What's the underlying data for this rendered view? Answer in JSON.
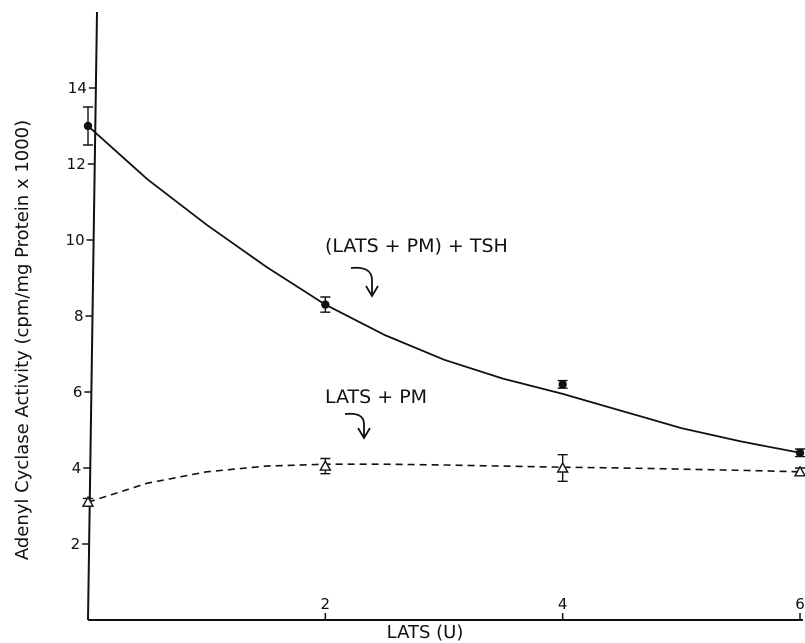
{
  "chart_data": {
    "type": "line",
    "xlabel": "LATS (U)",
    "ylabel": "Adenyl Cyclase Activity (cpm/mg Protein x 1000)",
    "xlim": [
      0,
      6
    ],
    "ylim": [
      0,
      16
    ],
    "xticks": [
      2,
      4,
      6
    ],
    "xtick_labels": [
      "2",
      "4",
      "6"
    ],
    "yticks": [
      2,
      4,
      6,
      8,
      10,
      12,
      14
    ],
    "ytick_labels": [
      "2",
      "4",
      "6",
      "8",
      "10",
      "12",
      "14"
    ],
    "grid": false,
    "series": [
      {
        "name": "(LATS + PM) + TSH",
        "line_style": "solid",
        "marker": "filled-circle",
        "x": [
          0,
          2,
          4,
          6
        ],
        "y": [
          13.0,
          8.3,
          6.2,
          4.4
        ],
        "error": [
          0.5,
          0.2,
          0.1,
          0.1
        ],
        "curve_x": [
          0,
          0.5,
          1,
          1.5,
          2,
          2.5,
          3,
          3.5,
          4,
          4.5,
          5,
          5.5,
          6
        ],
        "curve_y": [
          13.0,
          11.6,
          10.4,
          9.3,
          8.3,
          7.5,
          6.85,
          6.35,
          5.95,
          5.5,
          5.05,
          4.7,
          4.4
        ]
      },
      {
        "name": "LATS + PM",
        "line_style": "dashed",
        "marker": "open-triangle",
        "x": [
          0,
          2,
          4,
          6
        ],
        "y": [
          3.1,
          4.05,
          4.0,
          3.9
        ],
        "error": [
          0.1,
          0.2,
          0.35,
          0.1
        ],
        "curve_x": [
          0,
          0.5,
          1,
          1.5,
          2,
          2.5,
          3,
          3.5,
          4,
          4.5,
          5,
          5.5,
          6
        ],
        "curve_y": [
          3.1,
          3.6,
          3.9,
          4.05,
          4.1,
          4.1,
          4.08,
          4.05,
          4.02,
          4.0,
          3.97,
          3.94,
          3.9
        ]
      }
    ]
  }
}
